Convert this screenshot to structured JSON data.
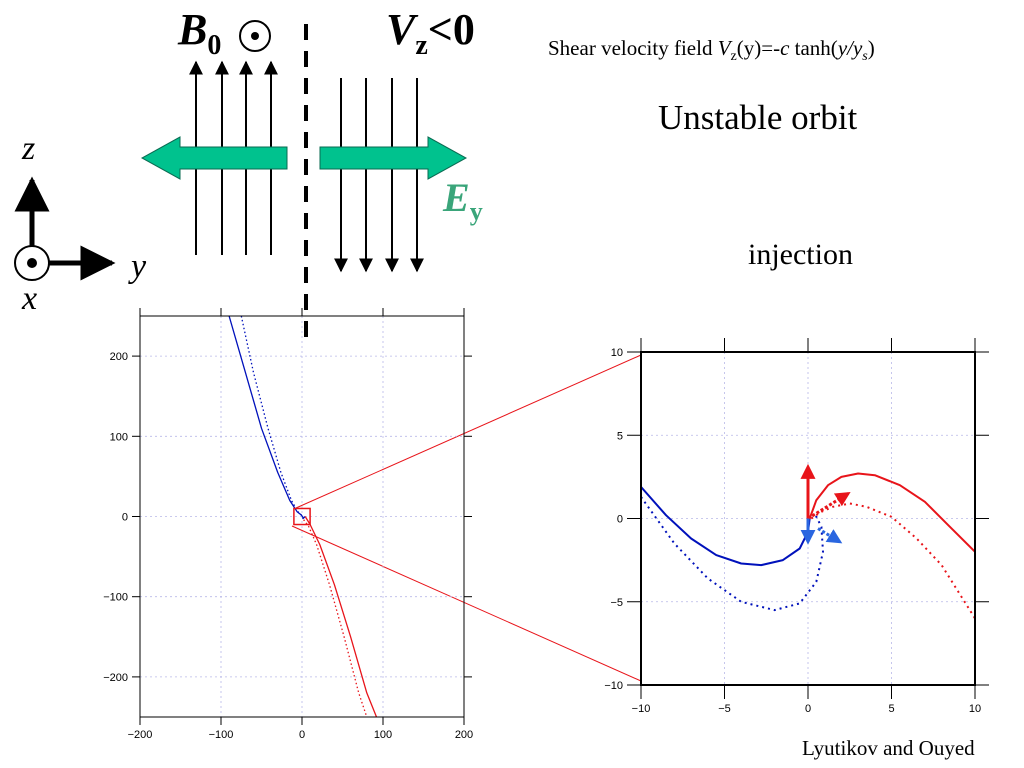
{
  "header": {
    "field_label": "B",
    "field_sub": "0",
    "velocity_label": "V",
    "velocity_sub": "z",
    "velocity_rel": "<0",
    "efield_label": "E",
    "efield_sub": "y"
  },
  "axes_glyph": {
    "z": "z",
    "y": "y",
    "x": "x"
  },
  "titles": {
    "shear_prefix": "Shear velocity field ",
    "shear_v": "V",
    "shear_vsub": "z",
    "shear_mid": "(y)=-",
    "shear_c": "c",
    "shear_tanh": " tanh(",
    "shear_y": "y/y",
    "shear_ysub": "s",
    "shear_close": ")",
    "orbit": "Unstable orbit",
    "injection": "injection"
  },
  "credit": "Lyutikov and Ouyed",
  "colors": {
    "arrow_fill": "#00c28e",
    "efield_text": "#3aa57a",
    "orbit_red": "#e8141a",
    "orbit_blue": "#0011bb",
    "dotted_blue": "#2a66e0"
  },
  "chart_data": [
    {
      "type": "line",
      "title": "",
      "xlabel": "",
      "ylabel": "",
      "xlim": [
        -200,
        200
      ],
      "ylim": [
        -250,
        250
      ],
      "xticks": [
        -200,
        -100,
        0,
        100,
        200
      ],
      "yticks": [
        -200,
        -100,
        0,
        100,
        200
      ],
      "xtick_labels": [
        "−200",
        "−100",
        "0",
        "100",
        "200"
      ],
      "ytick_labels": [
        "−200",
        "−100",
        "0",
        "100",
        "200"
      ],
      "grid": true,
      "series": [
        {
          "color": "#0011bb",
          "style": "solid",
          "x": [
            -90,
            -70,
            -50,
            -30,
            -15,
            -6,
            -1,
            2,
            4
          ],
          "y": [
            250,
            180,
            110,
            55,
            20,
            6,
            2,
            -2,
            0
          ]
        },
        {
          "color": "#0011bb",
          "style": "dotted",
          "x": [
            -75,
            -60,
            -42,
            -26,
            -13,
            -5,
            -1,
            2
          ],
          "y": [
            250,
            180,
            110,
            55,
            20,
            6,
            2,
            -4
          ]
        },
        {
          "color": "#e8141a",
          "style": "solid",
          "x": [
            4,
            10,
            22,
            40,
            60,
            80,
            92
          ],
          "y": [
            0,
            -10,
            -35,
            -85,
            -150,
            -220,
            -250
          ]
        },
        {
          "color": "#e8141a",
          "style": "dotted",
          "x": [
            2,
            8,
            18,
            34,
            52,
            70,
            80
          ],
          "y": [
            -4,
            -12,
            -35,
            -85,
            -150,
            -220,
            -250
          ]
        }
      ]
    },
    {
      "type": "line",
      "title": "",
      "xlabel": "",
      "ylabel": "",
      "xlim": [
        -10,
        10
      ],
      "ylim": [
        -10,
        10
      ],
      "xticks": [
        -10,
        -5,
        0,
        5,
        10
      ],
      "yticks": [
        -10,
        -5,
        0,
        5,
        10
      ],
      "xtick_labels": [
        "−10",
        "−5",
        "0",
        "5",
        "10"
      ],
      "ytick_labels": [
        "−10",
        "−5",
        "0",
        "5",
        "10"
      ],
      "grid": true,
      "series": [
        {
          "color": "#0011bb",
          "style": "solid",
          "x": [
            -10,
            -8.5,
            -7,
            -5.5,
            -4,
            -2.8,
            -1.5,
            -0.5,
            0,
            0.1
          ],
          "y": [
            1.9,
            0.2,
            -1.2,
            -2.2,
            -2.7,
            -2.8,
            -2.5,
            -1.8,
            -0.8,
            0
          ]
        },
        {
          "color": "#0011bb",
          "style": "dotted",
          "x": [
            -10,
            -8,
            -6,
            -4,
            -2,
            -0.5,
            0.5,
            0.9,
            0.8,
            0.4,
            0.2
          ],
          "y": [
            1.3,
            -1.5,
            -3.6,
            -5.0,
            -5.5,
            -5.1,
            -3.8,
            -2.0,
            -0.5,
            0.3,
            0
          ]
        },
        {
          "color": "#e8141a",
          "style": "solid",
          "x": [
            0.1,
            0.5,
            1.2,
            2.0,
            3.0,
            4.0,
            5.5,
            7.0,
            8.5,
            10
          ],
          "y": [
            0,
            1.1,
            2.0,
            2.5,
            2.7,
            2.6,
            2.0,
            1.0,
            -0.5,
            -2.0
          ]
        },
        {
          "color": "#e8141a",
          "style": "dotted",
          "x": [
            0.2,
            0.8,
            1.5,
            2.5,
            3.5,
            5.0,
            6.5,
            8.0,
            10
          ],
          "y": [
            0,
            0.4,
            0.7,
            0.9,
            0.7,
            0.1,
            -1.2,
            -2.8,
            -6.0
          ]
        }
      ],
      "arrows": [
        {
          "color": "#e8141a",
          "style": "solid",
          "from": [
            0,
            0
          ],
          "to": [
            0,
            3.1
          ]
        },
        {
          "color": "#e8141a",
          "style": "dotted",
          "from": [
            0,
            0
          ],
          "to": [
            2.4,
            1.5
          ]
        },
        {
          "color": "#2a66e0",
          "style": "solid",
          "from": [
            0,
            0
          ],
          "to": [
            0,
            -1.4
          ]
        },
        {
          "color": "#2a66e0",
          "style": "dotted",
          "from": [
            0.6,
            -0.6
          ],
          "to": [
            1.9,
            -1.4
          ]
        }
      ]
    }
  ]
}
